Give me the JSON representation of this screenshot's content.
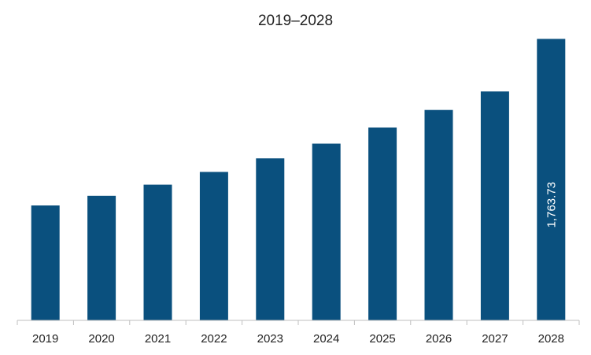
{
  "chart_data": {
    "type": "bar",
    "title": "2019–2028",
    "xlabel": "",
    "ylabel": "",
    "categories": [
      "2019",
      "2020",
      "2021",
      "2022",
      "2023",
      "2024",
      "2025",
      "2026",
      "2027",
      "2028"
    ],
    "values": [
      720,
      780,
      850,
      930,
      1015,
      1107,
      1208,
      1318,
      1434,
      1763.73
    ],
    "data_labels": [
      "",
      "",
      "",
      "",
      "",
      "",
      "",
      "",
      "",
      "1,763.73"
    ],
    "ylim": [
      0,
      1800
    ],
    "grid": false,
    "y_axis_visible": false,
    "colors": {
      "bar": "#0a507e",
      "axis": "#bfbfbf",
      "data_label": "#ffffff"
    }
  }
}
